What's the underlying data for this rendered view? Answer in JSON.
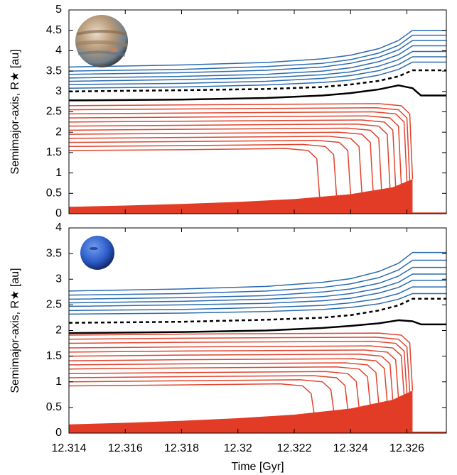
{
  "chart_data": [
    {
      "type": "line",
      "ylabel": "Semimajor-axis, R★ [au]",
      "xlim": [
        12.314,
        12.3274
      ],
      "ylim": [
        0,
        5
      ],
      "yticks": [
        0,
        0.5,
        1,
        1.5,
        2,
        2.5,
        3,
        3.5,
        4,
        4.5,
        5
      ],
      "series": [
        {
          "color": "#e23b26",
          "fill": true,
          "x": [
            12.314,
            12.316,
            12.318,
            12.32,
            12.322,
            12.324,
            12.3255,
            12.3262,
            12.3262,
            12.3274
          ],
          "values": [
            0.17,
            0.2,
            0.24,
            0.29,
            0.36,
            0.48,
            0.65,
            0.85,
            0.03,
            0.03
          ]
        },
        {
          "color": "#e0452f",
          "x": [
            12.314,
            12.318,
            12.3217,
            12.3225,
            12.3228,
            12.3229
          ],
          "values": [
            1.55,
            1.57,
            1.6,
            1.55,
            1.35,
            0.41
          ]
        },
        {
          "color": "#e0452f",
          "x": [
            12.314,
            12.318,
            12.3223,
            12.3231,
            12.3234,
            12.3235
          ],
          "values": [
            1.65,
            1.67,
            1.7,
            1.65,
            1.45,
            0.45
          ]
        },
        {
          "color": "#e0452f",
          "x": [
            12.314,
            12.318,
            12.3228,
            12.3236,
            12.3239,
            12.324
          ],
          "values": [
            1.75,
            1.77,
            1.8,
            1.75,
            1.55,
            0.48
          ]
        },
        {
          "color": "#e0452f",
          "x": [
            12.314,
            12.318,
            12.3232,
            12.324,
            12.3243,
            12.3244
          ],
          "values": [
            1.85,
            1.87,
            1.9,
            1.85,
            1.65,
            0.51
          ]
        },
        {
          "color": "#e0452f",
          "x": [
            12.314,
            12.318,
            12.3236,
            12.3244,
            12.3247,
            12.3248
          ],
          "values": [
            1.95,
            1.97,
            2.0,
            1.95,
            1.75,
            0.55
          ]
        },
        {
          "color": "#e0452f",
          "x": [
            12.314,
            12.318,
            12.3239,
            12.3247,
            12.325,
            12.3251
          ],
          "values": [
            2.05,
            2.07,
            2.1,
            2.05,
            1.85,
            0.58
          ]
        },
        {
          "color": "#e0452f",
          "x": [
            12.314,
            12.318,
            12.3242,
            12.325,
            12.3253,
            12.3254
          ],
          "values": [
            2.15,
            2.17,
            2.2,
            2.15,
            1.95,
            0.62
          ]
        },
        {
          "color": "#e0452f",
          "x": [
            12.314,
            12.318,
            12.3244,
            12.3252,
            12.3255,
            12.3256
          ],
          "values": [
            2.25,
            2.27,
            2.3,
            2.25,
            2.05,
            0.67
          ]
        },
        {
          "color": "#e0452f",
          "x": [
            12.314,
            12.318,
            12.3246,
            12.3254,
            12.3257,
            12.3258
          ],
          "values": [
            2.35,
            2.37,
            2.4,
            2.35,
            2.15,
            0.73
          ]
        },
        {
          "color": "#e0452f",
          "x": [
            12.314,
            12.318,
            12.3248,
            12.3256,
            12.3259,
            12.326
          ],
          "values": [
            2.45,
            2.47,
            2.5,
            2.45,
            2.25,
            0.79
          ]
        },
        {
          "color": "#e0452f",
          "x": [
            12.314,
            12.318,
            12.3249,
            12.3257,
            12.326,
            12.3261
          ],
          "values": [
            2.55,
            2.57,
            2.6,
            2.55,
            2.35,
            0.82
          ]
        },
        {
          "color": "#e0452f",
          "x": [
            12.314,
            12.318,
            12.325,
            12.3258,
            12.3261,
            12.3262
          ],
          "values": [
            2.65,
            2.67,
            2.7,
            2.65,
            2.45,
            0.85
          ]
        },
        {
          "color": "#000000",
          "width": 2.5,
          "x": [
            12.314,
            12.318,
            12.321,
            12.323,
            12.324,
            12.325,
            12.3257,
            12.3262,
            12.3265,
            12.3274
          ],
          "values": [
            2.78,
            2.8,
            2.84,
            2.9,
            2.96,
            3.05,
            3.15,
            3.08,
            2.9,
            2.9
          ]
        },
        {
          "color": "#000000",
          "width": 2.5,
          "dash": true,
          "x": [
            12.314,
            12.318,
            12.321,
            12.323,
            12.324,
            12.325,
            12.3257,
            12.3262,
            12.3274
          ],
          "values": [
            3.0,
            3.03,
            3.06,
            3.11,
            3.17,
            3.26,
            3.37,
            3.52,
            3.52
          ]
        },
        {
          "color": "#2b6cb0",
          "x": [
            12.314,
            12.318,
            12.321,
            12.323,
            12.324,
            12.325,
            12.3257,
            12.3262,
            12.3274
          ],
          "values": [
            3.08,
            3.11,
            3.16,
            3.22,
            3.28,
            3.4,
            3.54,
            3.72,
            3.72
          ]
        },
        {
          "color": "#2b6cb0",
          "x": [
            12.314,
            12.318,
            12.321,
            12.323,
            12.324,
            12.325,
            12.3257,
            12.3262,
            12.3274
          ],
          "values": [
            3.17,
            3.2,
            3.25,
            3.32,
            3.39,
            3.51,
            3.66,
            3.85,
            3.85
          ]
        },
        {
          "color": "#2b6cb0",
          "x": [
            12.314,
            12.318,
            12.321,
            12.323,
            12.324,
            12.325,
            12.3257,
            12.3262,
            12.3274
          ],
          "values": [
            3.25,
            3.29,
            3.34,
            3.41,
            3.48,
            3.62,
            3.78,
            3.98,
            3.98
          ]
        },
        {
          "color": "#2b6cb0",
          "x": [
            12.314,
            12.318,
            12.321,
            12.323,
            12.324,
            12.325,
            12.3257,
            12.3262,
            12.3274
          ],
          "values": [
            3.33,
            3.37,
            3.42,
            3.5,
            3.58,
            3.73,
            3.9,
            4.12,
            4.12
          ]
        },
        {
          "color": "#2b6cb0",
          "x": [
            12.314,
            12.318,
            12.321,
            12.323,
            12.324,
            12.325,
            12.3257,
            12.3262,
            12.3274
          ],
          "values": [
            3.42,
            3.46,
            3.52,
            3.6,
            3.69,
            3.84,
            4.02,
            4.25,
            4.25
          ]
        },
        {
          "color": "#2b6cb0",
          "x": [
            12.314,
            12.318,
            12.321,
            12.323,
            12.324,
            12.325,
            12.3257,
            12.3262,
            12.3274
          ],
          "values": [
            3.5,
            3.54,
            3.61,
            3.69,
            3.78,
            3.94,
            4.13,
            4.38,
            4.38
          ]
        },
        {
          "color": "#2b6cb0",
          "x": [
            12.314,
            12.318,
            12.321,
            12.323,
            12.324,
            12.325,
            12.3257,
            12.3262,
            12.3274
          ],
          "values": [
            3.6,
            3.65,
            3.71,
            3.8,
            3.89,
            4.05,
            4.25,
            4.5,
            4.5
          ]
        }
      ]
    },
    {
      "type": "line",
      "ylabel": "Semimajor-axis, R★ [au]",
      "xlabel": "Time [Gyr]",
      "xlim": [
        12.314,
        12.3274
      ],
      "ylim": [
        0,
        4
      ],
      "xticks": [
        12.314,
        12.316,
        12.318,
        12.32,
        12.322,
        12.324,
        12.326
      ],
      "yticks": [
        0,
        0.5,
        1,
        1.5,
        2,
        2.5,
        3,
        3.5,
        4
      ],
      "series": [
        {
          "color": "#e23b26",
          "fill": true,
          "x": [
            12.314,
            12.316,
            12.318,
            12.32,
            12.322,
            12.324,
            12.3255,
            12.3262,
            12.3262,
            12.3274
          ],
          "values": [
            0.17,
            0.2,
            0.24,
            0.29,
            0.36,
            0.48,
            0.65,
            0.83,
            0.03,
            0.03
          ]
        },
        {
          "color": "#e0452f",
          "x": [
            12.314,
            12.318,
            12.3215,
            12.3223,
            12.3226,
            12.3227
          ],
          "values": [
            0.92,
            0.94,
            0.96,
            0.92,
            0.77,
            0.4
          ]
        },
        {
          "color": "#e0452f",
          "x": [
            12.314,
            12.318,
            12.3222,
            12.323,
            12.3233,
            12.3234
          ],
          "values": [
            1.0,
            1.02,
            1.04,
            1.0,
            0.85,
            0.44
          ]
        },
        {
          "color": "#e0452f",
          "x": [
            12.314,
            12.318,
            12.3227,
            12.3235,
            12.3238,
            12.3239
          ],
          "values": [
            1.08,
            1.1,
            1.12,
            1.08,
            0.93,
            0.47
          ]
        },
        {
          "color": "#e0452f",
          "x": [
            12.314,
            12.318,
            12.3231,
            12.3239,
            12.3242,
            12.3243
          ],
          "values": [
            1.16,
            1.18,
            1.2,
            1.16,
            1.01,
            0.5
          ]
        },
        {
          "color": "#e0452f",
          "x": [
            12.314,
            12.318,
            12.3235,
            12.3243,
            12.3246,
            12.3247
          ],
          "values": [
            1.25,
            1.27,
            1.29,
            1.25,
            1.1,
            0.54
          ]
        },
        {
          "color": "#e0452f",
          "x": [
            12.314,
            12.318,
            12.3238,
            12.3246,
            12.3249,
            12.325
          ],
          "values": [
            1.33,
            1.35,
            1.37,
            1.33,
            1.18,
            0.57
          ]
        },
        {
          "color": "#e0452f",
          "x": [
            12.314,
            12.318,
            12.3241,
            12.3249,
            12.3252,
            12.3253
          ],
          "values": [
            1.41,
            1.43,
            1.45,
            1.41,
            1.26,
            0.61
          ]
        },
        {
          "color": "#e0452f",
          "x": [
            12.314,
            12.318,
            12.3243,
            12.3251,
            12.3254,
            12.3255
          ],
          "values": [
            1.5,
            1.52,
            1.54,
            1.5,
            1.35,
            0.64
          ]
        },
        {
          "color": "#e0452f",
          "x": [
            12.314,
            12.318,
            12.3245,
            12.3253,
            12.3256,
            12.3257
          ],
          "values": [
            1.58,
            1.6,
            1.62,
            1.58,
            1.43,
            0.69
          ]
        },
        {
          "color": "#e0452f",
          "x": [
            12.314,
            12.318,
            12.3247,
            12.3255,
            12.3258,
            12.3259
          ],
          "values": [
            1.66,
            1.68,
            1.7,
            1.66,
            1.51,
            0.74
          ]
        },
        {
          "color": "#e0452f",
          "x": [
            12.314,
            12.318,
            12.3248,
            12.3256,
            12.3259,
            12.326
          ],
          "values": [
            1.75,
            1.77,
            1.79,
            1.75,
            1.6,
            0.77
          ]
        },
        {
          "color": "#e0452f",
          "x": [
            12.314,
            12.318,
            12.3249,
            12.3257,
            12.326,
            12.3261
          ],
          "values": [
            1.83,
            1.85,
            1.87,
            1.83,
            1.68,
            0.8
          ]
        },
        {
          "color": "#e0452f",
          "x": [
            12.314,
            12.318,
            12.325,
            12.3258,
            12.3261,
            12.3262
          ],
          "values": [
            1.91,
            1.93,
            1.95,
            1.91,
            1.76,
            0.83
          ]
        },
        {
          "color": "#000000",
          "width": 2.5,
          "x": [
            12.314,
            12.318,
            12.321,
            12.323,
            12.324,
            12.325,
            12.3257,
            12.3262,
            12.3265,
            12.3274
          ],
          "values": [
            1.95,
            1.97,
            2.0,
            2.05,
            2.09,
            2.14,
            2.2,
            2.18,
            2.12,
            2.12
          ]
        },
        {
          "color": "#000000",
          "width": 2.5,
          "dash": true,
          "x": [
            12.314,
            12.318,
            12.321,
            12.323,
            12.324,
            12.325,
            12.3257,
            12.3262,
            12.3274
          ],
          "values": [
            2.15,
            2.17,
            2.21,
            2.25,
            2.3,
            2.39,
            2.49,
            2.62,
            2.62
          ]
        },
        {
          "color": "#2b6cb0",
          "x": [
            12.314,
            12.318,
            12.321,
            12.323,
            12.324,
            12.325,
            12.3257,
            12.3262,
            12.3274
          ],
          "values": [
            2.32,
            2.34,
            2.37,
            2.41,
            2.45,
            2.52,
            2.61,
            2.72,
            2.72
          ]
        },
        {
          "color": "#2b6cb0",
          "x": [
            12.314,
            12.318,
            12.321,
            12.323,
            12.324,
            12.325,
            12.3257,
            12.3262,
            12.3274
          ],
          "values": [
            2.39,
            2.41,
            2.45,
            2.49,
            2.54,
            2.62,
            2.72,
            2.85,
            2.85
          ]
        },
        {
          "color": "#2b6cb0",
          "x": [
            12.314,
            12.318,
            12.321,
            12.323,
            12.324,
            12.325,
            12.3257,
            12.3262,
            12.3274
          ],
          "values": [
            2.47,
            2.5,
            2.53,
            2.58,
            2.63,
            2.73,
            2.84,
            2.98,
            2.98
          ]
        },
        {
          "color": "#2b6cb0",
          "x": [
            12.314,
            12.318,
            12.321,
            12.323,
            12.324,
            12.325,
            12.3257,
            12.3262,
            12.3274
          ],
          "values": [
            2.54,
            2.57,
            2.61,
            2.66,
            2.72,
            2.82,
            2.94,
            3.1,
            3.1
          ]
        },
        {
          "color": "#2b6cb0",
          "x": [
            12.314,
            12.318,
            12.321,
            12.323,
            12.324,
            12.325,
            12.3257,
            12.3262,
            12.3274
          ],
          "values": [
            2.61,
            2.64,
            2.68,
            2.75,
            2.81,
            2.92,
            3.06,
            3.23,
            3.23
          ]
        },
        {
          "color": "#2b6cb0",
          "x": [
            12.314,
            12.318,
            12.321,
            12.323,
            12.324,
            12.325,
            12.3257,
            12.3262,
            12.3274
          ],
          "values": [
            2.69,
            2.72,
            2.77,
            2.84,
            2.91,
            3.03,
            3.18,
            3.37,
            3.37
          ]
        },
        {
          "color": "#2b6cb0",
          "x": [
            12.314,
            12.318,
            12.321,
            12.323,
            12.324,
            12.325,
            12.3257,
            12.3262,
            12.3274
          ],
          "values": [
            2.77,
            2.81,
            2.86,
            2.94,
            3.01,
            3.15,
            3.31,
            3.52,
            3.52
          ]
        }
      ]
    }
  ]
}
